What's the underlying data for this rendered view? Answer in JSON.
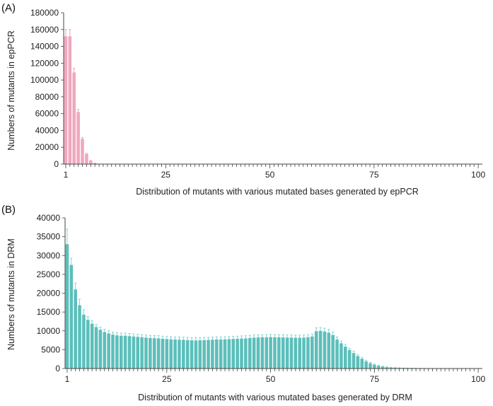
{
  "chart_data": [
    {
      "type": "bar",
      "panel_label": "(A)",
      "title": "",
      "xlabel": "Distribution of mutants with various mutated bases generated by epPCR",
      "ylabel": "Numbers of mutants in epPCR",
      "xlim": [
        1,
        100
      ],
      "ylim": [
        0,
        180000
      ],
      "y_ticks": [
        0,
        20000,
        40000,
        60000,
        80000,
        100000,
        120000,
        140000,
        160000,
        180000
      ],
      "x_tick_labels": [
        1,
        25,
        50,
        75,
        100
      ],
      "bar_color": "#f0a8be",
      "error_color": "#e590aa",
      "x": [
        1,
        2,
        3,
        4,
        5,
        6,
        7,
        8,
        9,
        10,
        11,
        12,
        13,
        14,
        15,
        16,
        17,
        18,
        19,
        20,
        21,
        22,
        23,
        24,
        25,
        26,
        27,
        28,
        29,
        30,
        31,
        32,
        33,
        34,
        35,
        36,
        37,
        38,
        39,
        40,
        41,
        42,
        43,
        44,
        45,
        46,
        47,
        48,
        49,
        50,
        51,
        52,
        53,
        54,
        55,
        56,
        57,
        58,
        59,
        60,
        61,
        62,
        63,
        64,
        65,
        66,
        67,
        68,
        69,
        70,
        71,
        72,
        73,
        74,
        75,
        76,
        77,
        78,
        79,
        80,
        81,
        82,
        83,
        84,
        85,
        86,
        87,
        88,
        89,
        90,
        91,
        92,
        93,
        94,
        95,
        96,
        97,
        98,
        99,
        100
      ],
      "values": [
        152000,
        152000,
        109000,
        62000,
        30000,
        12000,
        4000,
        1000,
        300,
        100,
        0,
        0,
        0,
        0,
        0,
        0,
        0,
        0,
        0,
        0,
        0,
        0,
        0,
        0,
        0,
        0,
        0,
        0,
        0,
        0,
        0,
        0,
        0,
        0,
        0,
        0,
        0,
        0,
        0,
        0,
        0,
        0,
        0,
        0,
        0,
        0,
        0,
        0,
        0,
        0,
        0,
        0,
        0,
        0,
        0,
        0,
        0,
        0,
        0,
        0,
        0,
        0,
        0,
        0,
        0,
        0,
        0,
        0,
        0,
        0,
        0,
        0,
        0,
        0,
        0,
        0,
        0,
        0,
        0,
        0,
        0,
        0,
        0,
        0,
        0,
        0,
        0,
        0,
        0,
        0,
        0,
        0,
        0,
        0,
        0,
        0,
        0,
        0,
        0,
        0
      ],
      "errors": [
        8000,
        8000,
        5000,
        3000,
        1500,
        800,
        300,
        100,
        0,
        0,
        0,
        0,
        0,
        0,
        0,
        0,
        0,
        0,
        0,
        0,
        0,
        0,
        0,
        0,
        0,
        0,
        0,
        0,
        0,
        0,
        0,
        0,
        0,
        0,
        0,
        0,
        0,
        0,
        0,
        0,
        0,
        0,
        0,
        0,
        0,
        0,
        0,
        0,
        0,
        0,
        0,
        0,
        0,
        0,
        0,
        0,
        0,
        0,
        0,
        0,
        0,
        0,
        0,
        0,
        0,
        0,
        0,
        0,
        0,
        0,
        0,
        0,
        0,
        0,
        0,
        0,
        0,
        0,
        0,
        0,
        0,
        0,
        0,
        0,
        0,
        0,
        0,
        0,
        0,
        0,
        0,
        0,
        0,
        0,
        0,
        0,
        0,
        0,
        0,
        0
      ]
    },
    {
      "type": "bar",
      "panel_label": "(B)",
      "title": "",
      "xlabel": "Distribution of mutants with various mutated bases generated by DRM",
      "ylabel": "Numbers of mutants in DRM",
      "xlim": [
        1,
        100
      ],
      "ylim": [
        0,
        40000
      ],
      "y_ticks": [
        0,
        5000,
        10000,
        15000,
        20000,
        25000,
        30000,
        35000,
        40000
      ],
      "x_tick_labels": [
        1,
        25,
        50,
        75,
        100
      ],
      "bar_color": "#5cbfbb",
      "error_color": "#6ccac6",
      "x": [
        1,
        2,
        3,
        4,
        5,
        6,
        7,
        8,
        9,
        10,
        11,
        12,
        13,
        14,
        15,
        16,
        17,
        18,
        19,
        20,
        21,
        22,
        23,
        24,
        25,
        26,
        27,
        28,
        29,
        30,
        31,
        32,
        33,
        34,
        35,
        36,
        37,
        38,
        39,
        40,
        41,
        42,
        43,
        44,
        45,
        46,
        47,
        48,
        49,
        50,
        51,
        52,
        53,
        54,
        55,
        56,
        57,
        58,
        59,
        60,
        61,
        62,
        63,
        64,
        65,
        66,
        67,
        68,
        69,
        70,
        71,
        72,
        73,
        74,
        75,
        76,
        77,
        78,
        79,
        80,
        81,
        82,
        83,
        84,
        85,
        86,
        87,
        88,
        89,
        90,
        91,
        92,
        93,
        94,
        95,
        96,
        97,
        98,
        99,
        100
      ],
      "values": [
        33000,
        27500,
        21000,
        16800,
        14300,
        12900,
        11900,
        11000,
        10300,
        9700,
        9300,
        9000,
        8800,
        8700,
        8700,
        8600,
        8500,
        8400,
        8300,
        8200,
        8100,
        8050,
        8000,
        7900,
        7800,
        7750,
        7700,
        7650,
        7600,
        7550,
        7500,
        7450,
        7500,
        7550,
        7600,
        7650,
        7700,
        7700,
        7750,
        7800,
        7850,
        7900,
        7950,
        8000,
        8100,
        8200,
        8250,
        8300,
        8300,
        8350,
        8300,
        8300,
        8250,
        8200,
        8200,
        8150,
        8150,
        8200,
        8300,
        8500,
        9900,
        10000,
        9800,
        9500,
        8900,
        7700,
        6700,
        5800,
        4900,
        4100,
        3300,
        2600,
        1900,
        1400,
        1000,
        700,
        500,
        350,
        250,
        200,
        150,
        120,
        100,
        80,
        60,
        50,
        40,
        30,
        25,
        20,
        15,
        10,
        8,
        6,
        5,
        4,
        3,
        2,
        1,
        0
      ],
      "errors": [
        4000,
        1800,
        1700,
        1600,
        1300,
        900,
        800,
        700,
        700,
        700,
        700,
        700,
        700,
        700,
        700,
        700,
        700,
        700,
        700,
        700,
        700,
        700,
        700,
        700,
        700,
        700,
        700,
        700,
        700,
        700,
        700,
        700,
        700,
        700,
        700,
        700,
        700,
        700,
        700,
        700,
        700,
        700,
        700,
        700,
        700,
        700,
        700,
        700,
        700,
        700,
        700,
        700,
        700,
        700,
        700,
        700,
        700,
        700,
        700,
        700,
        900,
        900,
        900,
        900,
        800,
        700,
        600,
        600,
        500,
        500,
        400,
        350,
        300,
        250,
        200,
        150,
        100,
        80,
        60,
        50,
        40,
        30,
        25,
        20,
        15,
        10,
        8,
        6,
        5,
        4,
        3,
        2,
        1,
        1,
        0,
        0,
        0,
        0,
        0,
        0
      ]
    }
  ]
}
